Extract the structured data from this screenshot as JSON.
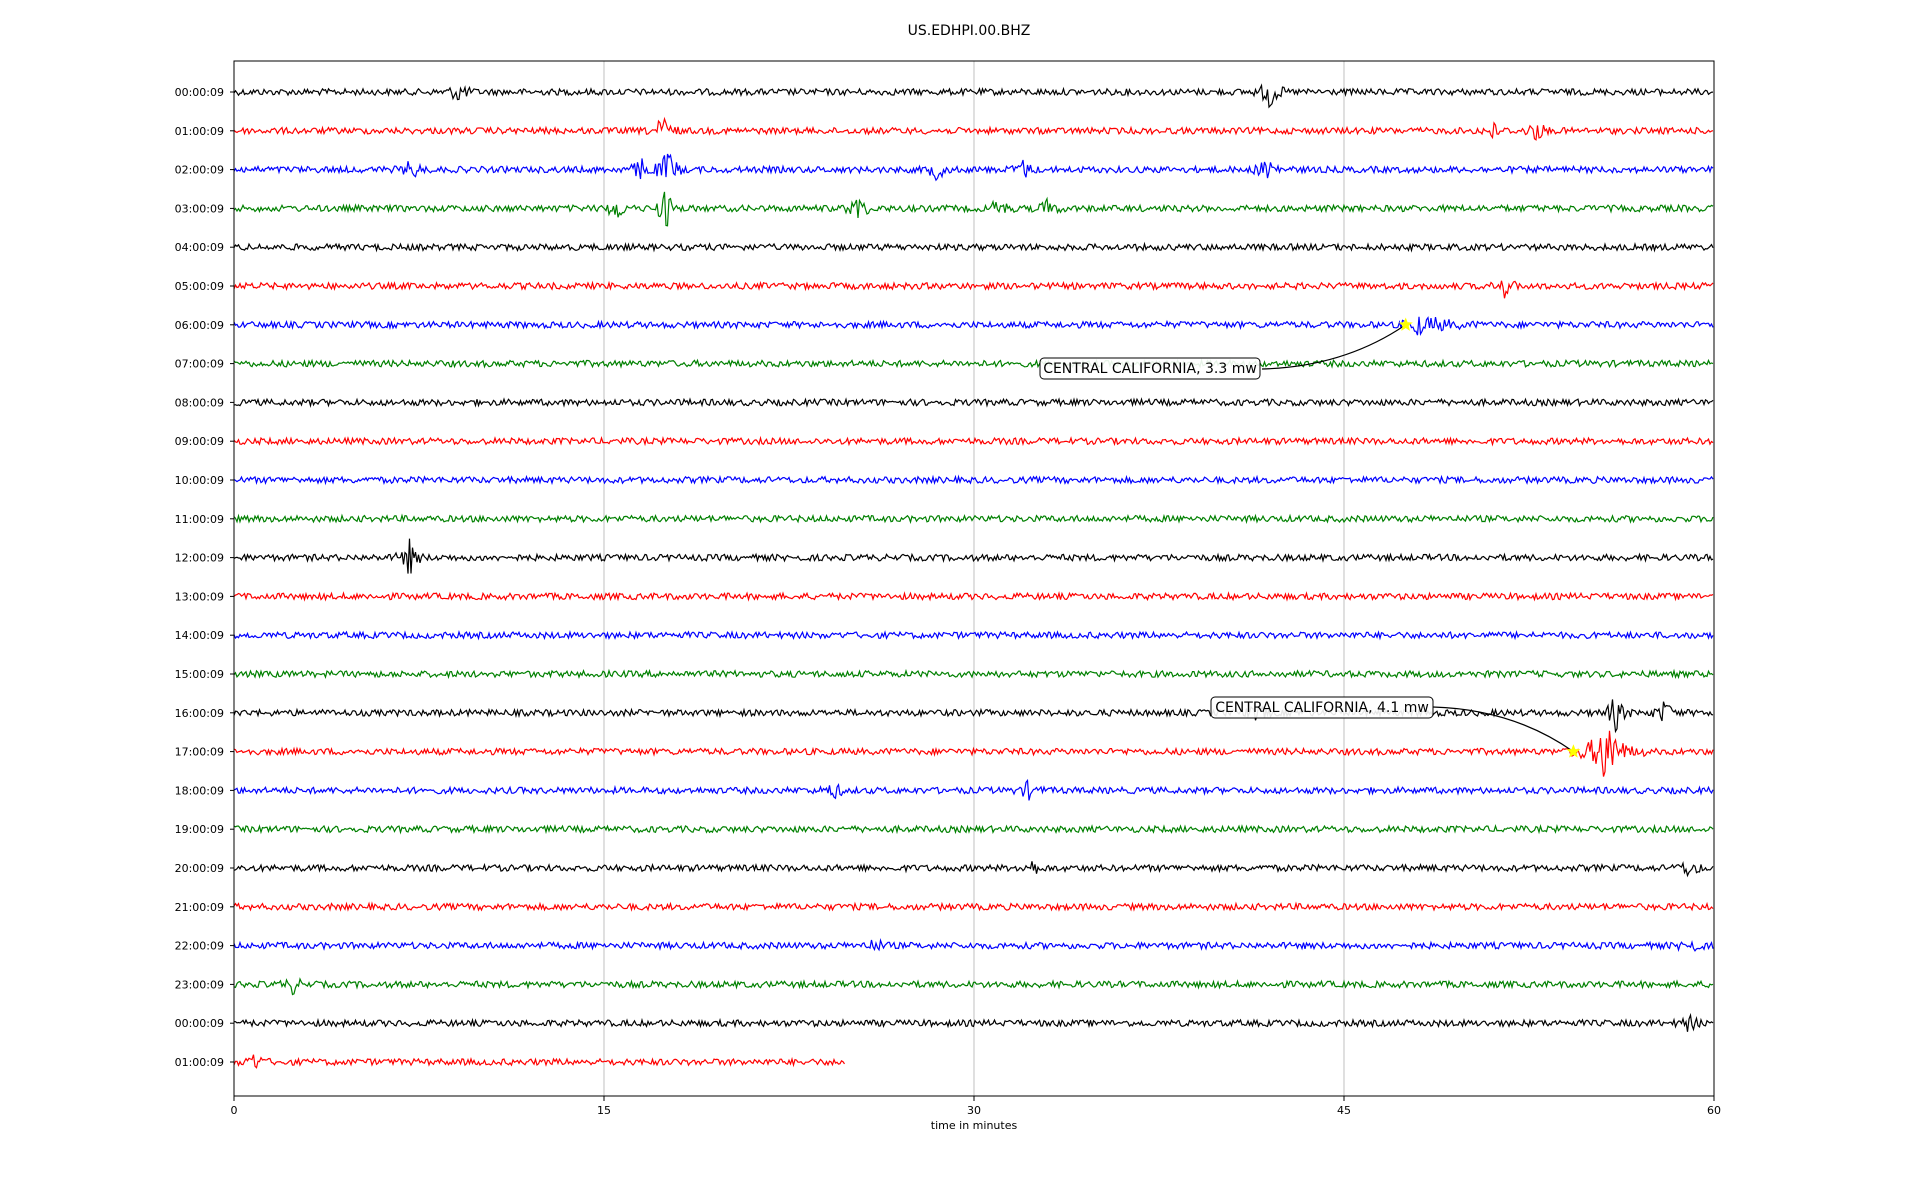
{
  "chart_data": {
    "type": "line",
    "title": "US.EDHPI.00.BHZ",
    "xlabel": "time in minutes",
    "xlim": [
      0,
      60
    ],
    "x_ticks": [
      "0",
      "15",
      "30",
      "45",
      "60"
    ],
    "row_labels": [
      "00:00:09",
      "01:00:09",
      "02:00:09",
      "03:00:09",
      "04:00:09",
      "05:00:09",
      "06:00:09",
      "07:00:09",
      "08:00:09",
      "09:00:09",
      "10:00:09",
      "11:00:09",
      "12:00:09",
      "13:00:09",
      "14:00:09",
      "15:00:09",
      "16:00:09",
      "17:00:09",
      "18:00:09",
      "19:00:09",
      "20:00:09",
      "21:00:09",
      "22:00:09",
      "23:00:09",
      "00:00:09",
      "01:00:09"
    ],
    "row_colors": [
      "#000000",
      "#ff0000",
      "#0000ff",
      "#008000"
    ],
    "last_row_end_minutes": 24.8,
    "grid": "vertical",
    "events": [
      {
        "row": 6,
        "minute": 47.5,
        "label": "CENTRAL CALIFORNIA, 3.3 mw",
        "marker_color": "#ffff00"
      },
      {
        "row": 17,
        "minute": 54.3,
        "label": "CENTRAL CALIFORNIA, 4.1 mw",
        "marker_color": "#ffff00"
      }
    ],
    "bursts": [
      {
        "row": 0,
        "minute": 42.0,
        "amp": 18
      },
      {
        "row": 0,
        "minute": 9.1,
        "amp": 10
      },
      {
        "row": 1,
        "minute": 17.4,
        "amp": 16
      },
      {
        "row": 1,
        "minute": 51.0,
        "amp": 8
      },
      {
        "row": 1,
        "minute": 52.8,
        "amp": 10
      },
      {
        "row": 2,
        "minute": 7.2,
        "amp": 10
      },
      {
        "row": 2,
        "minute": 16.5,
        "amp": 12
      },
      {
        "row": 2,
        "minute": 17.6,
        "amp": 22
      },
      {
        "row": 2,
        "minute": 28.5,
        "amp": 10
      },
      {
        "row": 2,
        "minute": 32.0,
        "amp": 9
      },
      {
        "row": 2,
        "minute": 41.9,
        "amp": 14
      },
      {
        "row": 3,
        "minute": 15.5,
        "amp": 12
      },
      {
        "row": 3,
        "minute": 17.5,
        "amp": 20
      },
      {
        "row": 3,
        "minute": 25.3,
        "amp": 14
      },
      {
        "row": 3,
        "minute": 31.0,
        "amp": 10
      },
      {
        "row": 3,
        "minute": 33.0,
        "amp": 9
      },
      {
        "row": 5,
        "minute": 51.5,
        "amp": 10
      },
      {
        "row": 6,
        "minute": 48.0,
        "amp": 8
      },
      {
        "row": 12,
        "minute": 7.1,
        "amp": 18
      },
      {
        "row": 16,
        "minute": 41.5,
        "amp": 10
      },
      {
        "row": 16,
        "minute": 56.0,
        "amp": 18
      },
      {
        "row": 16,
        "minute": 58.0,
        "amp": 12
      },
      {
        "row": 17,
        "minute": 55.7,
        "amp": 28
      },
      {
        "row": 18,
        "minute": 24.3,
        "amp": 8
      },
      {
        "row": 18,
        "minute": 32.2,
        "amp": 8
      },
      {
        "row": 20,
        "minute": 32.3,
        "amp": 8
      },
      {
        "row": 20,
        "minute": 59.0,
        "amp": 9
      },
      {
        "row": 22,
        "minute": 26.0,
        "amp": 6
      },
      {
        "row": 22,
        "minute": 59.0,
        "amp": 8
      },
      {
        "row": 23,
        "minute": 2.4,
        "amp": 8
      },
      {
        "row": 24,
        "minute": 59.0,
        "amp": 8
      },
      {
        "row": 25,
        "minute": 0.8,
        "amp": 8
      }
    ]
  }
}
